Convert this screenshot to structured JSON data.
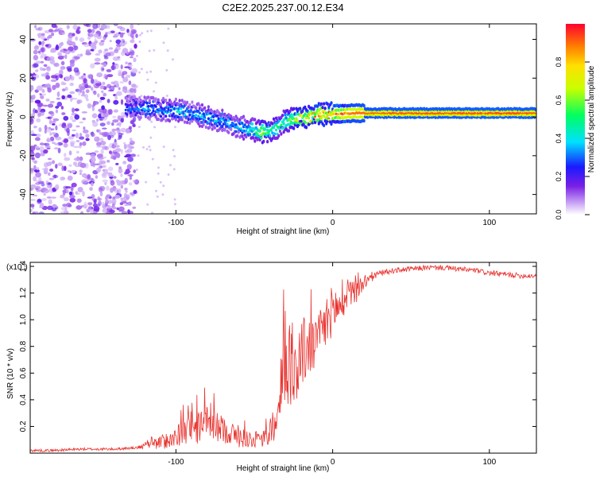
{
  "title": "C2E2.2025.237.00.12.E34",
  "chart_data": [
    {
      "type": "heatmap",
      "xlabel": "Height of straight line (km)",
      "ylabel": "Frequency (Hz)",
      "xlim": [
        -193,
        130
      ],
      "ylim": [
        -50,
        48
      ],
      "x_ticks": [
        -100,
        0,
        100
      ],
      "x_tick_labels": [
        "-100",
        "0",
        "100"
      ],
      "y_ticks": [
        -40,
        -20,
        0,
        20,
        40
      ],
      "y_tick_labels": [
        "-40",
        "-20",
        "0",
        "20",
        "40"
      ],
      "colorbar": {
        "label": "Normalized spectral amplitude",
        "range": [
          0,
          1
        ],
        "ticks": [
          0,
          0.2,
          0.4,
          0.6,
          0.8
        ],
        "tick_labels": [
          "0.0",
          "0.2",
          "0.4",
          "0.6",
          "0.8"
        ]
      },
      "ridge": {
        "x": [
          -130,
          -120,
          -110,
          -100,
          -90,
          -80,
          -70,
          -60,
          -50,
          -45,
          -40,
          -35,
          -30,
          -20,
          -10,
          0,
          10,
          20,
          40,
          60,
          80,
          100,
          130
        ],
        "freq": [
          5,
          4.5,
          4,
          3.5,
          2,
          0,
          -2,
          -5,
          -7,
          -8,
          -7,
          -5,
          -2,
          0,
          1,
          1.5,
          1.8,
          2,
          2,
          2,
          2,
          2,
          2
        ],
        "amp": [
          0.3,
          0.35,
          0.35,
          0.4,
          0.35,
          0.4,
          0.4,
          0.4,
          0.5,
          0.7,
          0.6,
          0.5,
          0.55,
          0.75,
          0.85,
          0.9,
          0.88,
          0.9,
          0.92,
          0.92,
          0.92,
          0.93,
          0.92
        ]
      },
      "noise_region": [
        -193,
        -125
      ]
    },
    {
      "type": "line",
      "xlabel": "Height of straight line (km)",
      "ylabel": "SNR (10 * v/v)",
      "y_scale_label": "(x10",
      "y_scale_exp": "4",
      "y_scale_close": ")",
      "xlim": [
        -193,
        130
      ],
      "ylim": [
        0,
        1.43
      ],
      "x_ticks": [
        -100,
        0,
        100
      ],
      "x_tick_labels": [
        "-100",
        "0",
        "100"
      ],
      "y_ticks": [
        0.2,
        0.4,
        0.6,
        0.8,
        1.0,
        1.2,
        1.4
      ],
      "y_tick_labels": [
        "0.2",
        "0.4",
        "0.6",
        "0.8",
        "1.0",
        "1.2",
        "1.4"
      ],
      "series": [
        {
          "name": "SNR",
          "color": "#e8332f",
          "x": [
            -193,
            -180,
            -160,
            -140,
            -125,
            -118,
            -110,
            -100,
            -90,
            -80,
            -70,
            -60,
            -50,
            -45,
            -40,
            -35,
            -32,
            -28,
            -25,
            -20,
            -15,
            -10,
            -5,
            0,
            5,
            10,
            15,
            20,
            25,
            30,
            40,
            50,
            60,
            70,
            80,
            90,
            100,
            110,
            120,
            130
          ],
          "y": [
            0.02,
            0.02,
            0.03,
            0.03,
            0.04,
            0.06,
            0.08,
            0.12,
            0.18,
            0.22,
            0.18,
            0.12,
            0.1,
            0.1,
            0.15,
            0.25,
            0.55,
            0.7,
            0.6,
            0.75,
            0.8,
            0.82,
            0.95,
            1.08,
            1.1,
            1.15,
            1.22,
            1.28,
            1.32,
            1.35,
            1.37,
            1.38,
            1.39,
            1.39,
            1.38,
            1.37,
            1.35,
            1.34,
            1.33,
            1.33
          ],
          "noise": [
            0.01,
            0.01,
            0.01,
            0.01,
            0.01,
            0.03,
            0.05,
            0.08,
            0.12,
            0.13,
            0.1,
            0.08,
            0.06,
            0.06,
            0.1,
            0.18,
            0.35,
            0.32,
            0.3,
            0.28,
            0.24,
            0.2,
            0.22,
            0.18,
            0.15,
            0.12,
            0.1,
            0.06,
            0.04,
            0.02,
            0.02,
            0.02,
            0.02,
            0.02,
            0.02,
            0.02,
            0.02,
            0.02,
            0.02,
            0.02
          ]
        }
      ]
    }
  ]
}
